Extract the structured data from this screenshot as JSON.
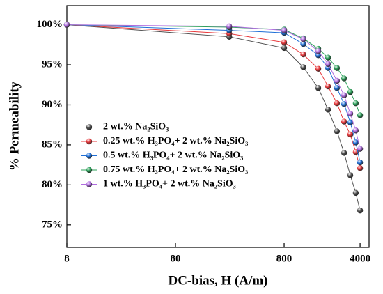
{
  "chart_data": {
    "type": "line",
    "x_label": "DC-bias, H (A/m)",
    "y_label": "% Permeability",
    "x": [
      8,
      250,
      800,
      1200,
      1650,
      2030,
      2450,
      2850,
      3250,
      3650,
      4000
    ],
    "xscale": "log",
    "xlim": [
      8,
      4840
    ],
    "xticks": [
      8,
      80,
      800,
      4000
    ],
    "ylim": [
      72.2,
      102.4
    ],
    "yticks": [
      {
        "value": 75,
        "label": "75%"
      },
      {
        "value": 80,
        "label": "80%"
      },
      {
        "value": 85,
        "label": "85%"
      },
      {
        "value": 90,
        "label": "90%"
      },
      {
        "value": 95,
        "label": "95%"
      },
      {
        "value": 100,
        "label": "100%"
      }
    ],
    "grid": false,
    "legend_loc": "lower left",
    "series": [
      {
        "name": "2 wt.% Na₂SiO₃",
        "color": "#505050",
        "values": [
          100,
          98.5,
          97.1,
          94.7,
          92.1,
          89.4,
          86.7,
          84.0,
          81.2,
          79.0,
          76.8
        ]
      },
      {
        "name": "0.25 wt.% H₃PO₄+ 2 wt.% Na₂SiO₃",
        "color": "#e8383b",
        "values": [
          100,
          98.9,
          97.8,
          96.3,
          94.5,
          92.3,
          90.2,
          87.9,
          86.3,
          84.1,
          82.1
        ]
      },
      {
        "name": "0.5 wt.% H₃PO₄+ 2 wt.% Na₂SiO₃",
        "color": "#1f6fd6",
        "values": [
          100,
          99.3,
          99.0,
          97.6,
          96.2,
          94.6,
          92.1,
          90.1,
          87.8,
          85.3,
          82.8
        ]
      },
      {
        "name": "0.75 wt.% H₃PO₄+ 2 wt.% Na₂SiO₃",
        "color": "#2ca05a",
        "values": [
          100,
          99.7,
          99.4,
          98.3,
          97.0,
          95.9,
          94.6,
          93.3,
          91.6,
          90.2,
          88.7
        ]
      },
      {
        "name": "1 wt.% H₃PO₄+ 2 wt.% Na₂SiO₃",
        "color": "#b06de0",
        "values": [
          100,
          99.8,
          99.3,
          98.2,
          96.7,
          95.1,
          93.0,
          91.2,
          88.9,
          86.8,
          84.5
        ]
      }
    ]
  }
}
